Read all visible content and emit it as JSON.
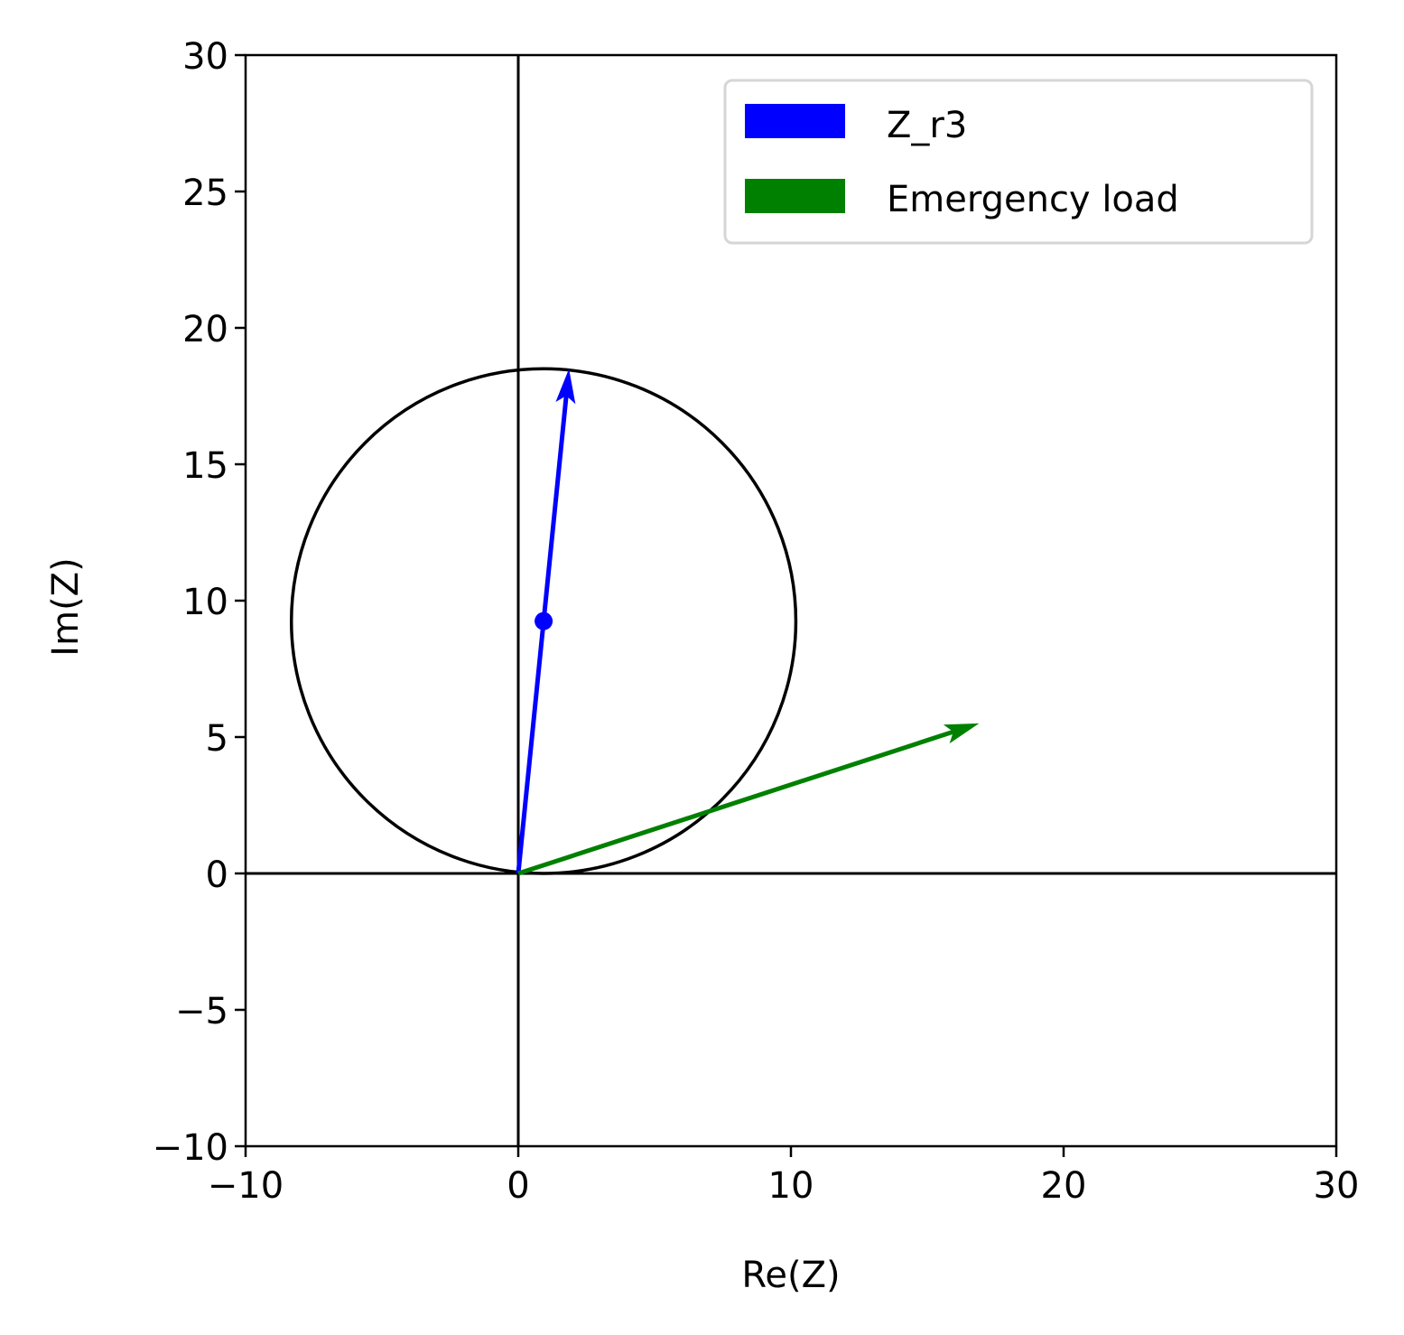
{
  "chart_data": {
    "type": "scatter",
    "title": "",
    "xlabel": "Re(Z)",
    "ylabel": "Im(Z)",
    "xlim": [
      -10,
      30
    ],
    "ylim": [
      -10,
      30
    ],
    "xticks": [
      -10,
      0,
      10,
      20,
      30
    ],
    "yticks": [
      -10,
      -5,
      0,
      5,
      10,
      15,
      20,
      25,
      30
    ],
    "xtick_labels": [
      "−10",
      "0",
      "10",
      "20",
      "30"
    ],
    "ytick_labels": [
      "−10",
      "−5",
      "0",
      "5",
      "10",
      "15",
      "20",
      "25",
      "30"
    ],
    "grid": false,
    "legend_position": "top-right",
    "reference_lines": {
      "x": 0,
      "y": 0
    },
    "circle": {
      "center": [
        0.93,
        9.25
      ],
      "radius": 9.25,
      "color": "#000000"
    },
    "series": [
      {
        "name": "Z_r3",
        "color": "#0000ff",
        "vector": {
          "from": [
            0,
            0
          ],
          "to": [
            1.86,
            18.5
          ]
        },
        "marker": [
          0.93,
          9.25
        ]
      },
      {
        "name": "Emergency load",
        "color": "#008000",
        "vector": {
          "from": [
            0,
            0
          ],
          "to": [
            16.9,
            5.5
          ]
        }
      }
    ]
  }
}
